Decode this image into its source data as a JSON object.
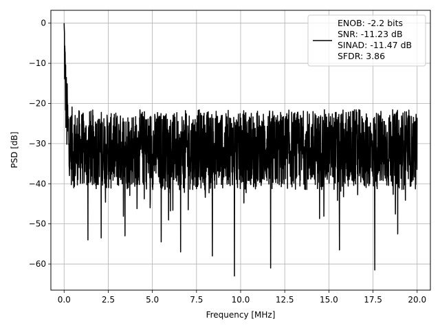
{
  "chart_data": {
    "type": "line",
    "title": "",
    "xlabel": "Frequency [MHz]",
    "ylabel": "PSD [dB]",
    "xlim": [
      -0.75,
      20.75
    ],
    "ylim": [
      -66.5,
      3.2
    ],
    "xticks": [
      0.0,
      2.5,
      5.0,
      7.5,
      10.0,
      12.5,
      15.0,
      17.5,
      20.0
    ],
    "xtick_labels": [
      "0.0",
      "2.5",
      "5.0",
      "7.5",
      "10.0",
      "12.5",
      "15.0",
      "17.5",
      "20.0"
    ],
    "yticks": [
      0,
      -10,
      -20,
      -30,
      -40,
      -50,
      -60
    ],
    "ytick_labels": [
      "0",
      "−10",
      "−20",
      "−30",
      "−40",
      "−50",
      "−60"
    ],
    "grid": true,
    "legend_position": "top-right",
    "series": [
      {
        "name": "ENOB: -2.2 bits",
        "color": "#000000",
        "x_start": 0.0,
        "x_end": 20.0,
        "noise_floor_band": [
          -40,
          -20
        ],
        "peak": {
          "x": 0.0,
          "y": 0.0
        },
        "dips": [
          {
            "x": 1.35,
            "y": -54
          },
          {
            "x": 2.1,
            "y": -53.5
          },
          {
            "x": 3.45,
            "y": -53
          },
          {
            "x": 5.5,
            "y": -54.5
          },
          {
            "x": 6.6,
            "y": -57
          },
          {
            "x": 8.4,
            "y": -58
          },
          {
            "x": 9.65,
            "y": -63
          },
          {
            "x": 11.7,
            "y": -61
          },
          {
            "x": 15.6,
            "y": -56.5
          },
          {
            "x": 17.6,
            "y": -61.5
          },
          {
            "x": 18.9,
            "y": -52.5
          }
        ]
      }
    ],
    "legend_lines": [
      "ENOB: -2.2 bits",
      "SNR: -11.23 dB",
      "SINAD: -11.47 dB",
      "SFDR: 3.86"
    ]
  }
}
